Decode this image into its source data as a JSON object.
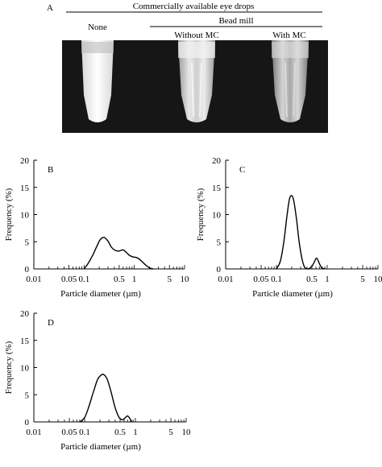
{
  "panel_a": {
    "letter": "A",
    "header": "Commercially available eye drops",
    "subheader": "Bead mill",
    "groups": [
      "None",
      "Without MC",
      "With MC"
    ]
  },
  "chart_data": [
    {
      "type": "line",
      "panel": "B",
      "xlabel": "Particle diameter (µm)",
      "ylabel": "Frequency (%)",
      "xscale": "log",
      "xlim": [
        0.01,
        10
      ],
      "ylim": [
        0,
        20
      ],
      "xticks": [
        "0.01",
        "0.05",
        "0.1",
        "0.5",
        "1",
        "5",
        "10"
      ],
      "yticks": [
        "0",
        "5",
        "10",
        "15",
        "20"
      ],
      "x": [
        0.1,
        0.12,
        0.15,
        0.18,
        0.21,
        0.25,
        0.3,
        0.35,
        0.42,
        0.5,
        0.6,
        0.7,
        0.8,
        0.95,
        1.1,
        1.3,
        1.6,
        2.0,
        2.4
      ],
      "y": [
        0,
        1.0,
        2.6,
        4.2,
        5.4,
        5.8,
        5.1,
        4.0,
        3.4,
        3.3,
        3.5,
        3.0,
        2.5,
        2.2,
        2.1,
        1.7,
        0.9,
        0.2,
        0
      ]
    },
    {
      "type": "line",
      "panel": "C",
      "xlabel": "Particle diameter (µm)",
      "ylabel": "Frequency (%)",
      "xscale": "log",
      "xlim": [
        0.01,
        10
      ],
      "ylim": [
        0,
        20
      ],
      "xticks": [
        "0.01",
        "0.05",
        "0.1",
        "0.5",
        "1",
        "5",
        "10"
      ],
      "yticks": [
        "0",
        "5",
        "10",
        "15",
        "20"
      ],
      "x": [
        0.1,
        0.12,
        0.14,
        0.16,
        0.18,
        0.2,
        0.22,
        0.25,
        0.28,
        0.32,
        0.36,
        0.42,
        0.5,
        0.56,
        0.62,
        0.7,
        0.78,
        0.9
      ],
      "y": [
        0,
        1.5,
        5.0,
        9.5,
        12.8,
        13.5,
        12.5,
        9.0,
        5.0,
        1.8,
        0.3,
        0,
        0.5,
        1.3,
        2.0,
        1.0,
        0.2,
        0
      ]
    },
    {
      "type": "line",
      "panel": "D",
      "xlabel": "Particle diameter (µm)",
      "ylabel": "Frequency (%)",
      "xscale": "log",
      "xlim": [
        0.01,
        10
      ],
      "ylim": [
        0,
        20
      ],
      "xticks": [
        "0.01",
        "0.05",
        "0.1",
        "0.5",
        "1",
        "5",
        "10"
      ],
      "yticks": [
        "0",
        "5",
        "10",
        "15",
        "20"
      ],
      "x": [
        0.08,
        0.1,
        0.12,
        0.15,
        0.18,
        0.21,
        0.24,
        0.28,
        0.33,
        0.4,
        0.48,
        0.56,
        0.62,
        0.7,
        0.78,
        0.85
      ],
      "y": [
        0,
        0.8,
        2.7,
        5.6,
        7.8,
        8.6,
        8.7,
        7.8,
        5.6,
        2.6,
        0.8,
        0.4,
        0.7,
        1.1,
        0.6,
        0
      ]
    }
  ]
}
